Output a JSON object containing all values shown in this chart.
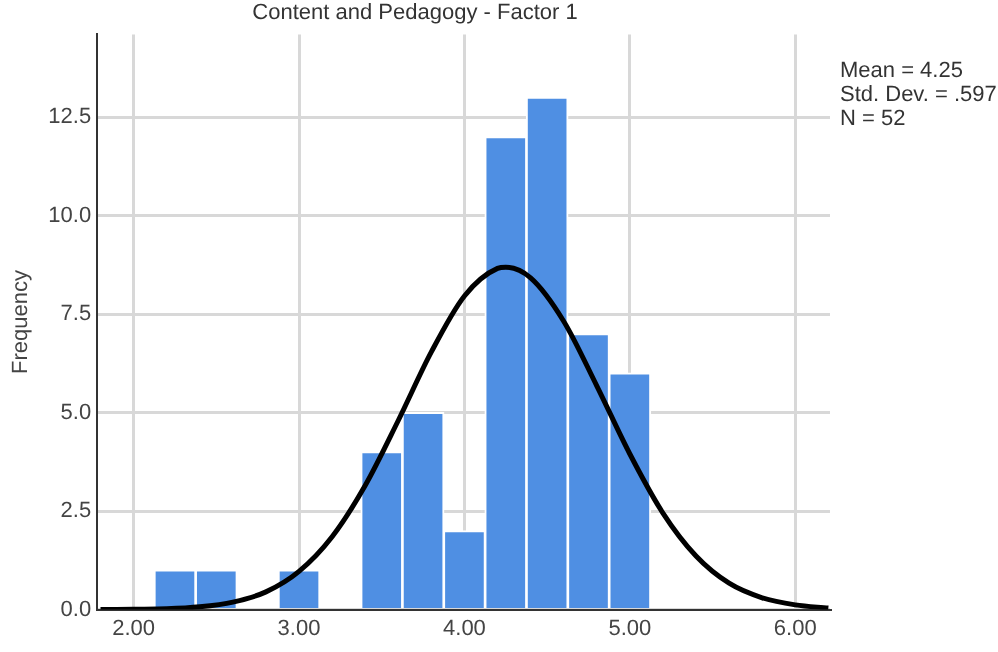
{
  "chart_data": {
    "type": "histogram",
    "title": "Content and Pedagogy - Factor 1",
    "ylabel": "Frequency",
    "bins": [
      2.125,
      2.375,
      2.625,
      2.875,
      3.125,
      3.375,
      3.625,
      3.875,
      4.125,
      4.375,
      4.625,
      4.875,
      5.125
    ],
    "values": [
      1,
      1,
      0,
      1,
      0,
      4,
      5,
      2,
      12,
      13,
      7,
      6
    ],
    "color": "#4f8fe3",
    "series": [
      {
        "type": "line",
        "color": "#000000",
        "x": [
          1.8,
          2.0,
          2.2,
          2.4,
          2.6,
          2.8,
          3.0,
          3.2,
          3.4,
          3.6,
          3.8,
          4.0,
          4.2,
          4.25,
          4.4,
          4.6,
          4.8,
          5.0,
          5.2,
          5.4,
          5.6,
          5.8,
          6.0,
          6.2
        ],
        "values": [
          0.0,
          0.01,
          0.02,
          0.07,
          0.19,
          0.45,
          0.97,
          1.85,
          3.15,
          4.8,
          6.54,
          7.96,
          8.66,
          8.69,
          8.42,
          7.32,
          5.68,
          3.95,
          2.45,
          1.36,
          0.67,
          0.3,
          0.12,
          0.04
        ]
      }
    ],
    "xlim": [
      1.78,
      6.21
    ],
    "xticks": [
      {
        "value": 2,
        "label": "2.00"
      },
      {
        "value": 3,
        "label": "3.00"
      },
      {
        "value": 4,
        "label": "4.00"
      },
      {
        "value": 5,
        "label": "5.00"
      },
      {
        "value": 6,
        "label": "6.00"
      }
    ],
    "ylim": [
      0,
      14.6
    ],
    "yticks": [
      {
        "value": 0,
        "label": "0.0"
      },
      {
        "value": 2.5,
        "label": "2.5"
      },
      {
        "value": 5,
        "label": "5.0"
      },
      {
        "value": 7.5,
        "label": "7.5"
      },
      {
        "value": 10,
        "label": "10.0"
      },
      {
        "value": 12.5,
        "label": "12.5"
      }
    ],
    "grid": true,
    "legend": false,
    "marker": "none",
    "annotations": [
      "Mean = 4.25",
      "Std. Dev. = .597",
      "N = 52"
    ]
  }
}
